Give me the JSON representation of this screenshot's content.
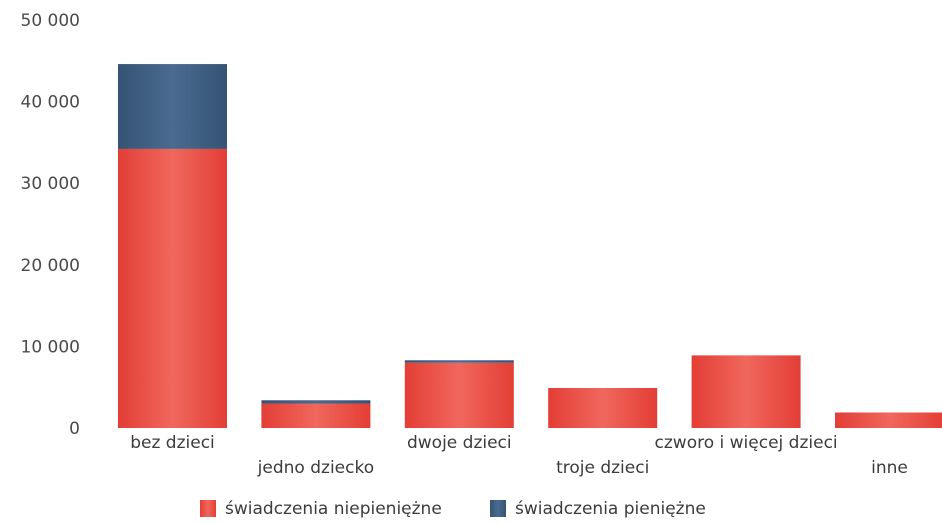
{
  "chart_data": {
    "type": "bar",
    "stacked": true,
    "categories": [
      "bez dzieci",
      "jedno dziecko",
      "dwoje dzieci",
      "troje dzieci",
      "czworo i więcej dzieci",
      "inne"
    ],
    "series": [
      {
        "name": "świadczenia niepieniężne",
        "color": "#e8453c",
        "values": [
          34200,
          3000,
          8000,
          4900,
          8900,
          1900
        ]
      },
      {
        "name": "świadczenia pieniężne",
        "color": "#3a5a7e",
        "values": [
          10400,
          400,
          300,
          0,
          0,
          0
        ]
      }
    ],
    "y_ticks": [
      "0",
      "10 000",
      "20 000",
      "30 000",
      "40 000",
      "50 000"
    ],
    "ylim": [
      0,
      50000
    ],
    "grid": false,
    "legend_position": "bottom"
  }
}
